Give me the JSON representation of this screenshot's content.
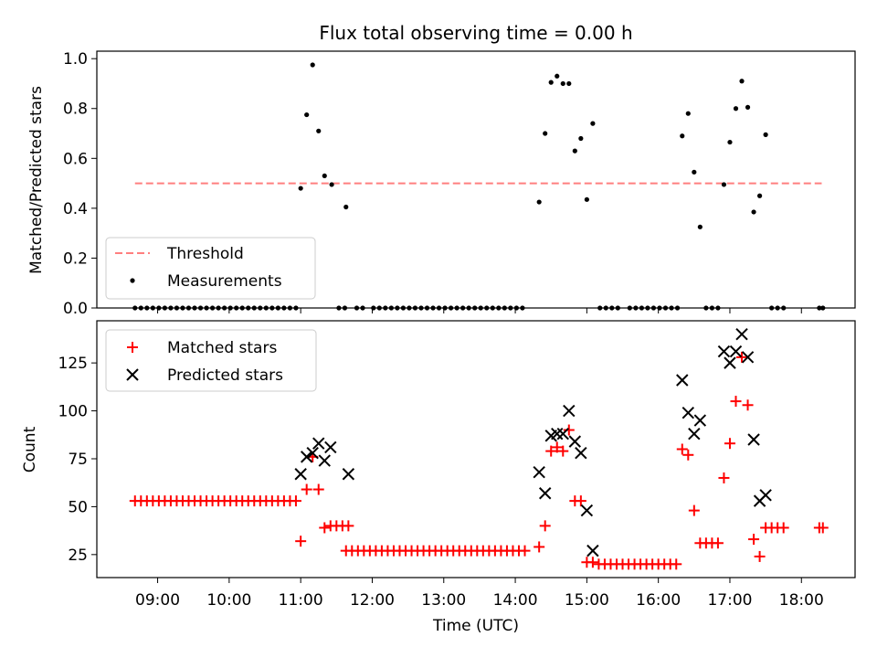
{
  "colors": {
    "threshold": "#ff7f7f",
    "measurements": "#000000",
    "matched": "#ff0000",
    "predicted": "#000000"
  },
  "chart_data": [
    {
      "type": "scatter",
      "title": "Flux total observing time = 0.00 h",
      "xlabel": "",
      "ylabel": "Matched/Predicted stars",
      "xlim_hours": [
        8.15,
        18.75
      ],
      "ylim": [
        0.0,
        1.03
      ],
      "yticks": [
        "0.0",
        "0.2",
        "0.4",
        "0.6",
        "0.8",
        "1.0"
      ],
      "legend_position": "lower-left",
      "grid": false,
      "series": [
        {
          "name": "Threshold",
          "kind": "dashed-line",
          "points": [
            [
              "08:41",
              0.5
            ],
            [
              "18:17",
              0.5
            ]
          ]
        },
        {
          "name": "Measurements",
          "kind": "dots",
          "points": [
            [
              "08:41",
              0.0
            ],
            [
              "08:46",
              0.0
            ],
            [
              "08:51",
              0.0
            ],
            [
              "08:56",
              0.0
            ],
            [
              "09:01",
              0.0
            ],
            [
              "09:06",
              0.0
            ],
            [
              "09:11",
              0.0
            ],
            [
              "09:16",
              0.0
            ],
            [
              "09:21",
              0.0
            ],
            [
              "09:26",
              0.0
            ],
            [
              "09:31",
              0.0
            ],
            [
              "09:36",
              0.0
            ],
            [
              "09:41",
              0.0
            ],
            [
              "09:46",
              0.0
            ],
            [
              "09:51",
              0.0
            ],
            [
              "09:56",
              0.0
            ],
            [
              "10:01",
              0.0
            ],
            [
              "10:06",
              0.0
            ],
            [
              "10:11",
              0.0
            ],
            [
              "10:16",
              0.0
            ],
            [
              "10:21",
              0.0
            ],
            [
              "10:26",
              0.0
            ],
            [
              "10:31",
              0.0
            ],
            [
              "10:36",
              0.0
            ],
            [
              "10:41",
              0.0
            ],
            [
              "10:46",
              0.0
            ],
            [
              "10:51",
              0.0
            ],
            [
              "10:56",
              0.0
            ],
            [
              "11:00",
              0.48
            ],
            [
              "11:05",
              0.775
            ],
            [
              "11:10",
              0.975
            ],
            [
              "11:15",
              0.71
            ],
            [
              "11:20",
              0.53
            ],
            [
              "11:26",
              0.495
            ],
            [
              "11:38",
              0.405
            ],
            [
              "11:32",
              0.0
            ],
            [
              "11:37",
              0.0
            ],
            [
              "11:47",
              0.0
            ],
            [
              "11:52",
              0.0
            ],
            [
              "12:01",
              0.0
            ],
            [
              "12:06",
              0.0
            ],
            [
              "12:11",
              0.0
            ],
            [
              "12:16",
              0.0
            ],
            [
              "12:21",
              0.0
            ],
            [
              "12:26",
              0.0
            ],
            [
              "12:31",
              0.0
            ],
            [
              "12:36",
              0.0
            ],
            [
              "12:41",
              0.0
            ],
            [
              "12:46",
              0.0
            ],
            [
              "12:51",
              0.0
            ],
            [
              "12:56",
              0.0
            ],
            [
              "13:01",
              0.0
            ],
            [
              "13:06",
              0.0
            ],
            [
              "13:11",
              0.0
            ],
            [
              "13:16",
              0.0
            ],
            [
              "13:21",
              0.0
            ],
            [
              "13:26",
              0.0
            ],
            [
              "13:31",
              0.0
            ],
            [
              "13:36",
              0.0
            ],
            [
              "13:41",
              0.0
            ],
            [
              "13:46",
              0.0
            ],
            [
              "13:51",
              0.0
            ],
            [
              "13:56",
              0.0
            ],
            [
              "14:01",
              0.0
            ],
            [
              "14:06",
              0.0
            ],
            [
              "14:20",
              0.425
            ],
            [
              "14:25",
              0.7
            ],
            [
              "14:30",
              0.905
            ],
            [
              "14:35",
              0.93
            ],
            [
              "14:40",
              0.9
            ],
            [
              "14:45",
              0.9
            ],
            [
              "14:50",
              0.63
            ],
            [
              "14:55",
              0.68
            ],
            [
              "15:00",
              0.435
            ],
            [
              "15:05",
              0.74
            ],
            [
              "15:11",
              0.0
            ],
            [
              "15:16",
              0.0
            ],
            [
              "15:21",
              0.0
            ],
            [
              "15:26",
              0.0
            ],
            [
              "15:36",
              0.0
            ],
            [
              "15:41",
              0.0
            ],
            [
              "15:46",
              0.0
            ],
            [
              "15:51",
              0.0
            ],
            [
              "15:56",
              0.0
            ],
            [
              "16:01",
              0.0
            ],
            [
              "16:06",
              0.0
            ],
            [
              "16:11",
              0.0
            ],
            [
              "16:16",
              0.0
            ],
            [
              "16:20",
              0.69
            ],
            [
              "16:25",
              0.78
            ],
            [
              "16:30",
              0.545
            ],
            [
              "16:35",
              0.325
            ],
            [
              "16:40",
              0.0
            ],
            [
              "16:45",
              0.0
            ],
            [
              "16:50",
              0.0
            ],
            [
              "16:55",
              0.495
            ],
            [
              "17:00",
              0.665
            ],
            [
              "17:05",
              0.8
            ],
            [
              "17:10",
              0.91
            ],
            [
              "17:15",
              0.805
            ],
            [
              "17:20",
              0.385
            ],
            [
              "17:25",
              0.45
            ],
            [
              "17:30",
              0.695
            ],
            [
              "17:35",
              0.0
            ],
            [
              "17:40",
              0.0
            ],
            [
              "17:45",
              0.0
            ],
            [
              "18:15",
              0.0
            ],
            [
              "18:18",
              0.0
            ]
          ]
        }
      ]
    },
    {
      "type": "scatter",
      "title": "",
      "xlabel": "Time (UTC)",
      "ylabel": "Count",
      "xlim_hours": [
        8.15,
        18.75
      ],
      "ylim": [
        13,
        147
      ],
      "yticks": [
        "25",
        "50",
        "75",
        "100",
        "125"
      ],
      "xticks": [
        "09:00",
        "10:00",
        "11:00",
        "12:00",
        "13:00",
        "14:00",
        "15:00",
        "16:00",
        "17:00",
        "18:00"
      ],
      "legend_position": "upper-left",
      "grid": false,
      "series": [
        {
          "name": "Matched stars",
          "kind": "plus",
          "points": [
            [
              "08:41",
              53
            ],
            [
              "08:46",
              53
            ],
            [
              "08:51",
              53
            ],
            [
              "08:56",
              53
            ],
            [
              "09:01",
              53
            ],
            [
              "09:06",
              53
            ],
            [
              "09:11",
              53
            ],
            [
              "09:16",
              53
            ],
            [
              "09:21",
              53
            ],
            [
              "09:26",
              53
            ],
            [
              "09:31",
              53
            ],
            [
              "09:36",
              53
            ],
            [
              "09:41",
              53
            ],
            [
              "09:46",
              53
            ],
            [
              "09:51",
              53
            ],
            [
              "09:56",
              53
            ],
            [
              "10:01",
              53
            ],
            [
              "10:06",
              53
            ],
            [
              "10:11",
              53
            ],
            [
              "10:16",
              53
            ],
            [
              "10:21",
              53
            ],
            [
              "10:26",
              53
            ],
            [
              "10:31",
              53
            ],
            [
              "10:36",
              53
            ],
            [
              "10:41",
              53
            ],
            [
              "10:46",
              53
            ],
            [
              "10:51",
              53
            ],
            [
              "10:56",
              53
            ],
            [
              "11:00",
              32
            ],
            [
              "11:05",
              59
            ],
            [
              "11:10",
              76
            ],
            [
              "11:15",
              59
            ],
            [
              "11:20",
              39
            ],
            [
              "11:25",
              40
            ],
            [
              "11:30",
              40
            ],
            [
              "11:35",
              40
            ],
            [
              "11:40",
              40
            ],
            [
              "11:38",
              27
            ],
            [
              "11:43",
              27
            ],
            [
              "11:48",
              27
            ],
            [
              "11:53",
              27
            ],
            [
              "11:58",
              27
            ],
            [
              "12:03",
              27
            ],
            [
              "12:08",
              27
            ],
            [
              "12:13",
              27
            ],
            [
              "12:18",
              27
            ],
            [
              "12:23",
              27
            ],
            [
              "12:28",
              27
            ],
            [
              "12:33",
              27
            ],
            [
              "12:38",
              27
            ],
            [
              "12:43",
              27
            ],
            [
              "12:48",
              27
            ],
            [
              "12:53",
              27
            ],
            [
              "12:58",
              27
            ],
            [
              "13:03",
              27
            ],
            [
              "13:08",
              27
            ],
            [
              "13:13",
              27
            ],
            [
              "13:18",
              27
            ],
            [
              "13:23",
              27
            ],
            [
              "13:28",
              27
            ],
            [
              "13:33",
              27
            ],
            [
              "13:38",
              27
            ],
            [
              "13:43",
              27
            ],
            [
              "13:48",
              27
            ],
            [
              "13:53",
              27
            ],
            [
              "13:58",
              27
            ],
            [
              "14:03",
              27
            ],
            [
              "14:08",
              27
            ],
            [
              "14:20",
              29
            ],
            [
              "14:25",
              40
            ],
            [
              "14:30",
              79
            ],
            [
              "14:35",
              81
            ],
            [
              "14:40",
              79
            ],
            [
              "14:45",
              90
            ],
            [
              "14:50",
              53
            ],
            [
              "14:55",
              53
            ],
            [
              "15:00",
              21
            ],
            [
              "15:05",
              21
            ],
            [
              "15:10",
              20
            ],
            [
              "15:15",
              20
            ],
            [
              "15:20",
              20
            ],
            [
              "15:25",
              20
            ],
            [
              "15:30",
              20
            ],
            [
              "15:35",
              20
            ],
            [
              "15:40",
              20
            ],
            [
              "15:45",
              20
            ],
            [
              "15:50",
              20
            ],
            [
              "15:55",
              20
            ],
            [
              "16:00",
              20
            ],
            [
              "16:05",
              20
            ],
            [
              "16:10",
              20
            ],
            [
              "16:15",
              20
            ],
            [
              "16:20",
              80
            ],
            [
              "16:25",
              77
            ],
            [
              "16:30",
              48
            ],
            [
              "16:35",
              31
            ],
            [
              "16:40",
              31
            ],
            [
              "16:45",
              31
            ],
            [
              "16:50",
              31
            ],
            [
              "16:55",
              65
            ],
            [
              "17:00",
              83
            ],
            [
              "17:05",
              105
            ],
            [
              "17:10",
              128
            ],
            [
              "17:15",
              103
            ],
            [
              "17:20",
              33
            ],
            [
              "17:25",
              24
            ],
            [
              "17:30",
              39
            ],
            [
              "17:35",
              39
            ],
            [
              "17:40",
              39
            ],
            [
              "17:45",
              39
            ],
            [
              "18:15",
              39
            ],
            [
              "18:18",
              39
            ]
          ]
        },
        {
          "name": "Predicted stars",
          "kind": "x",
          "points": [
            [
              "11:00",
              67
            ],
            [
              "11:05",
              76
            ],
            [
              "11:10",
              78
            ],
            [
              "11:15",
              83
            ],
            [
              "11:20",
              74
            ],
            [
              "11:25",
              81
            ],
            [
              "11:40",
              67
            ],
            [
              "14:20",
              68
            ],
            [
              "14:25",
              57
            ],
            [
              "14:30",
              87
            ],
            [
              "14:35",
              88
            ],
            [
              "14:40",
              88
            ],
            [
              "14:45",
              100
            ],
            [
              "14:50",
              84
            ],
            [
              "14:55",
              78
            ],
            [
              "15:00",
              48
            ],
            [
              "15:05",
              27
            ],
            [
              "16:20",
              116
            ],
            [
              "16:25",
              99
            ],
            [
              "16:30",
              88
            ],
            [
              "16:35",
              95
            ],
            [
              "16:55",
              131
            ],
            [
              "17:00",
              125
            ],
            [
              "17:05",
              131
            ],
            [
              "17:10",
              140
            ],
            [
              "17:15",
              128
            ],
            [
              "17:20",
              85
            ],
            [
              "17:25",
              53
            ],
            [
              "17:30",
              56
            ]
          ]
        }
      ]
    }
  ]
}
